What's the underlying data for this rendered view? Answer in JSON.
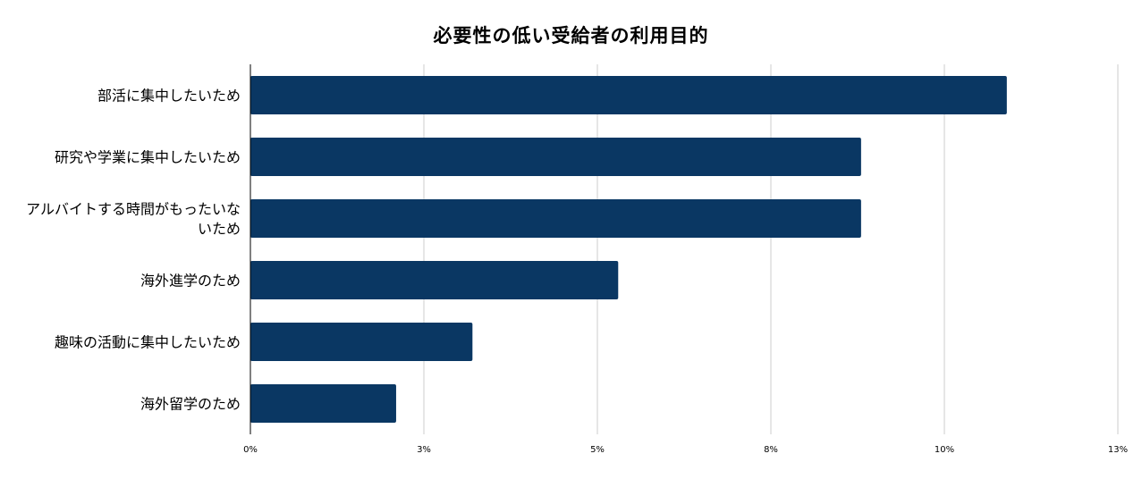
{
  "chart_data": {
    "type": "bar",
    "orientation": "horizontal",
    "title": "必要性の低い受給者の利用目的",
    "categories": [
      [
        "部活に集中したいため"
      ],
      [
        "研究や学業に集中したいため"
      ],
      [
        "アルバイトする時間がもったいな",
        "いため"
      ],
      [
        "海外進学のため"
      ],
      [
        "趣味の活動に集中したいため"
      ],
      [
        "海外留学のため"
      ]
    ],
    "values": [
      10.9,
      8.8,
      8.8,
      5.3,
      3.2,
      2.1
    ],
    "xlim": [
      0,
      12.5
    ],
    "ticks": [
      0,
      2.5,
      5,
      7.5,
      10,
      12.5
    ],
    "tick_labels": [
      "0%",
      "3%",
      "5%",
      "8%",
      "10%",
      "13%"
    ],
    "grid": true,
    "legend": "none",
    "colors": {
      "bar": "#0a3763",
      "grid": "#cccccc",
      "axis": "#000000"
    }
  }
}
